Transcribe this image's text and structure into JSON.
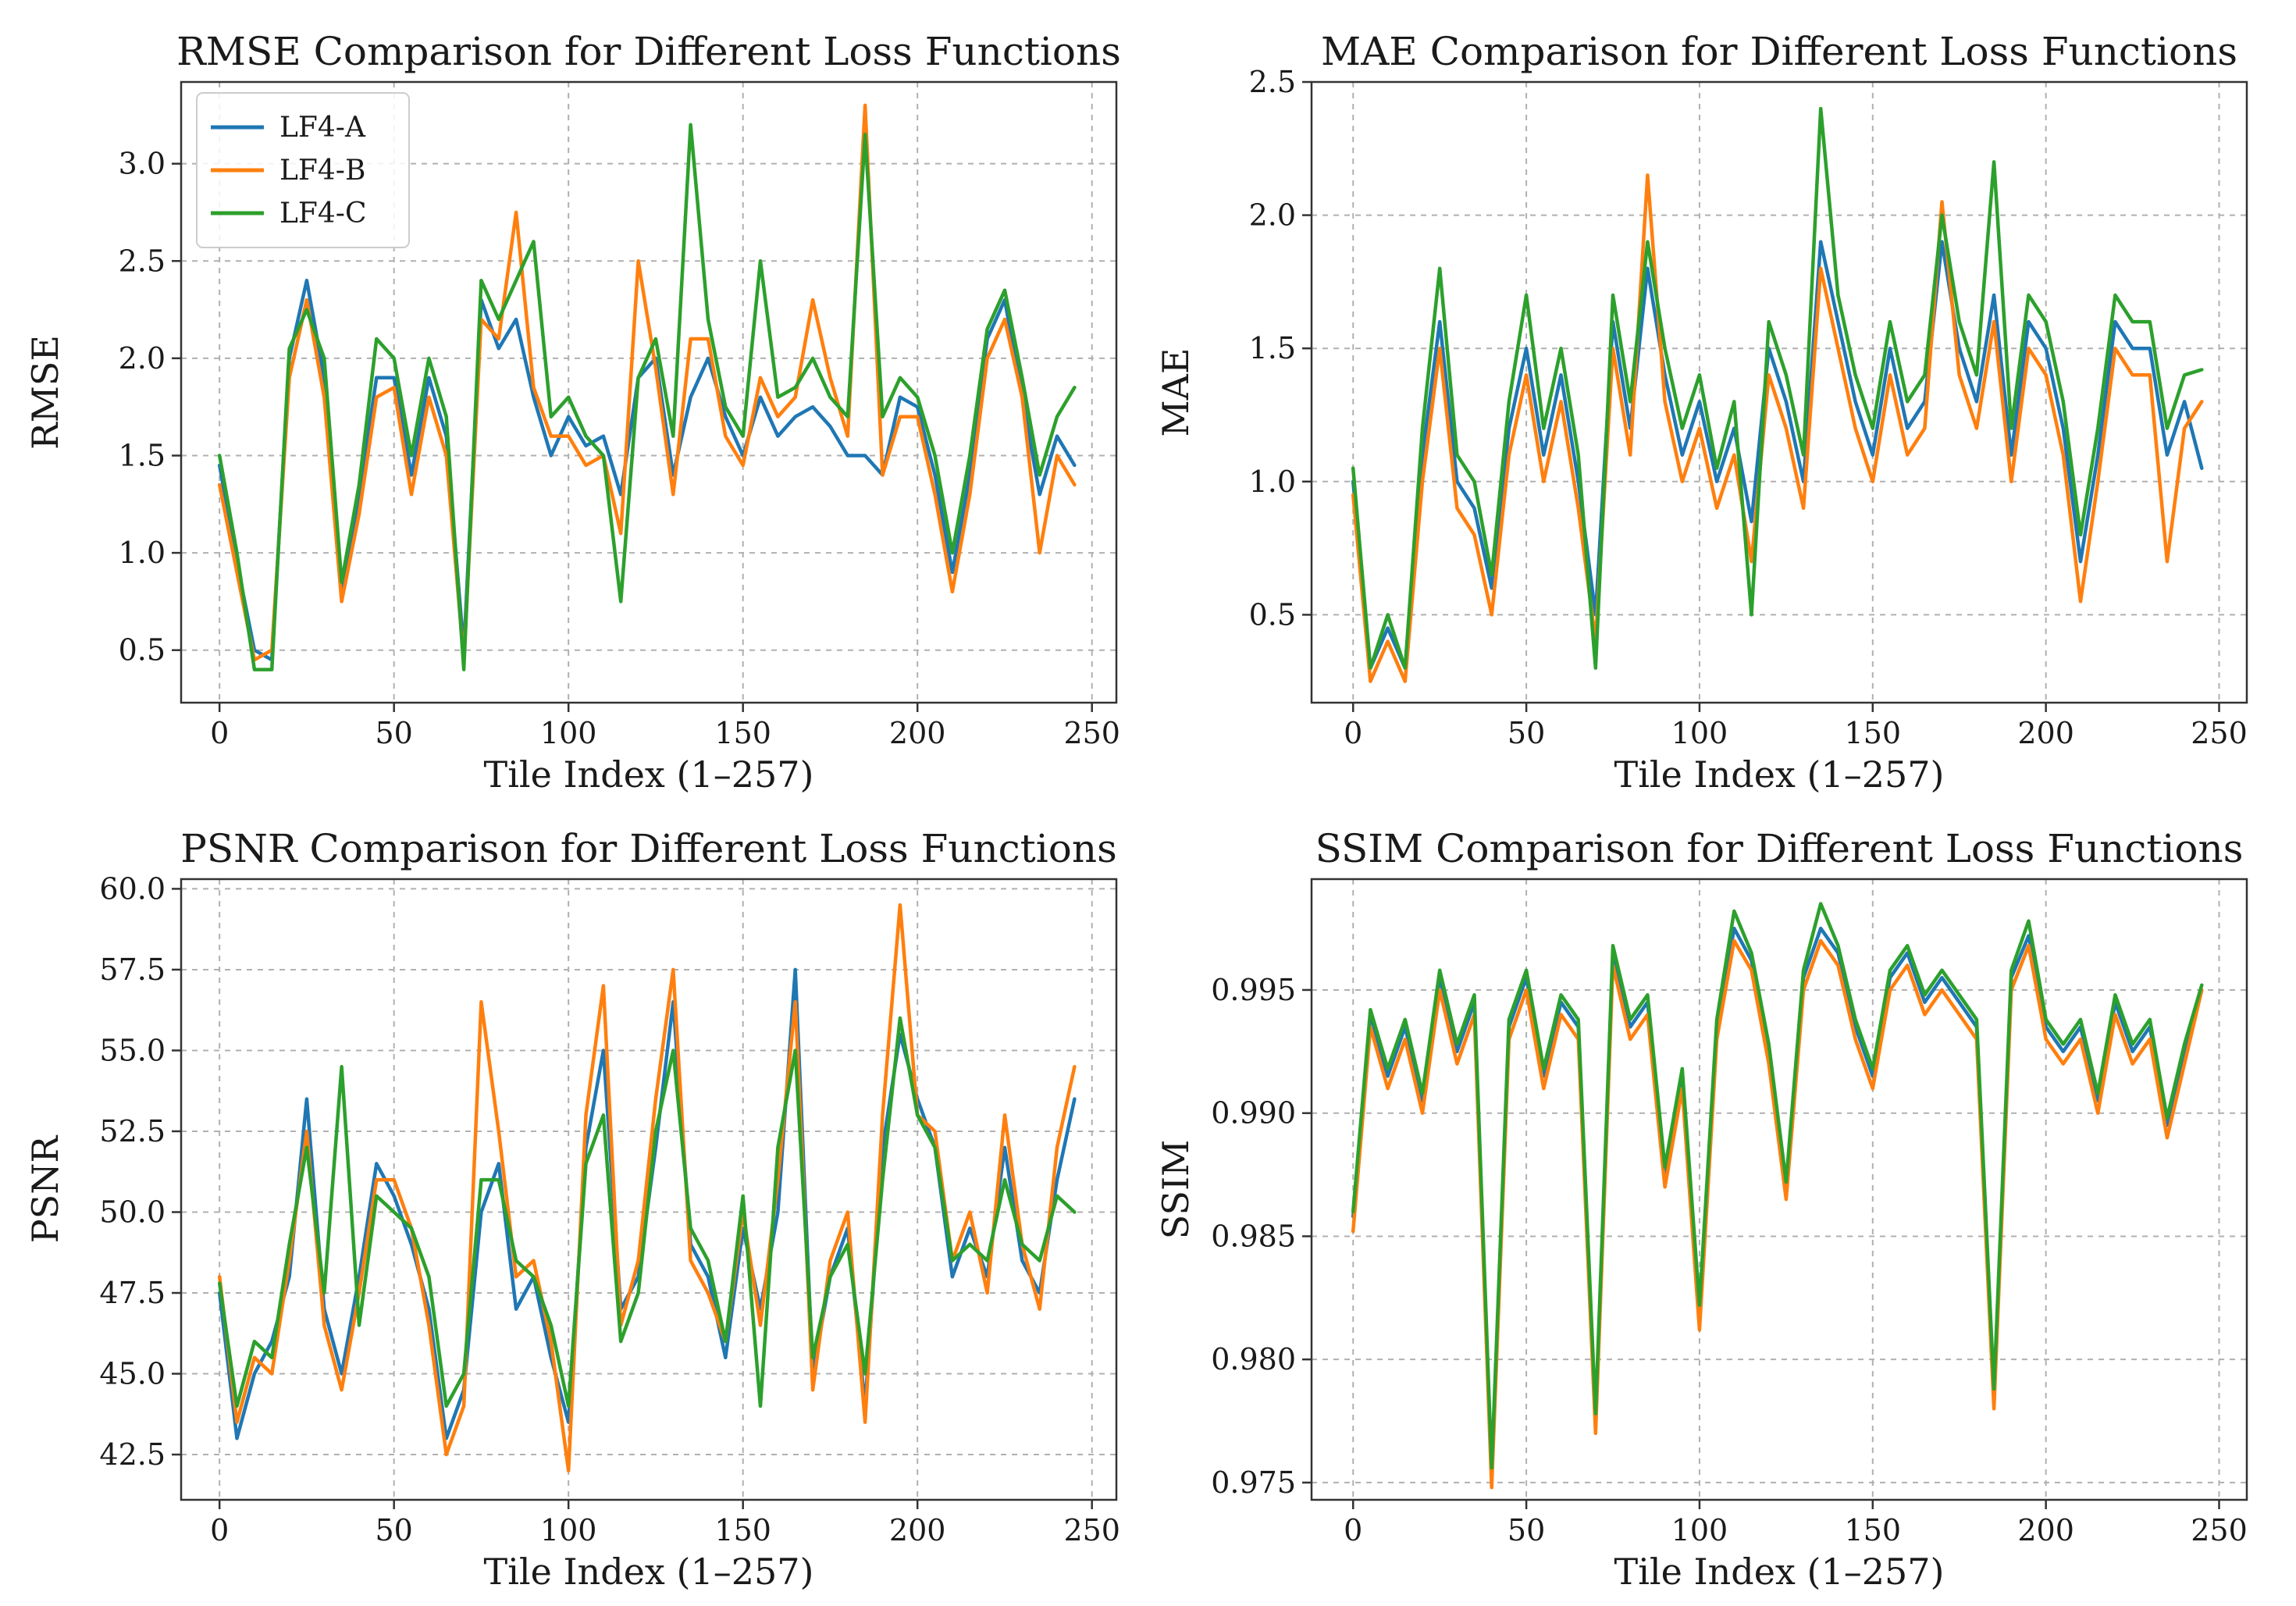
{
  "chart_data": [
    {
      "type": "line",
      "title": "RMSE Comparison for Different Loss Functions",
      "xlabel": "Tile Index (1–257)",
      "ylabel": "RMSE",
      "xlim": [
        -11,
        257
      ],
      "ylim": [
        0.23,
        3.42
      ],
      "xticks": [
        0,
        50,
        100,
        150,
        200,
        250
      ],
      "yticks": [
        0.5,
        1.0,
        1.5,
        2.0,
        2.5,
        3.0
      ],
      "ytick_decimals": 1,
      "grid": true,
      "legend": {
        "position": "top-left",
        "entries": [
          "LF4-A",
          "LF4-B",
          "LF4-C"
        ]
      },
      "series": [
        {
          "name": "LF4-A",
          "color": "#1f77b4"
        },
        {
          "name": "LF4-B",
          "color": "#ff7f0e"
        },
        {
          "name": "LF4-C",
          "color": "#2ca02c"
        }
      ],
      "x": [
        0,
        5,
        10,
        15,
        20,
        25,
        30,
        35,
        40,
        45,
        50,
        55,
        60,
        65,
        70,
        75,
        80,
        85,
        90,
        95,
        100,
        105,
        110,
        115,
        120,
        125,
        130,
        135,
        140,
        145,
        150,
        155,
        160,
        165,
        170,
        175,
        180,
        185,
        190,
        195,
        200,
        205,
        210,
        215,
        220,
        225,
        230,
        235,
        240,
        245
      ],
      "values": [
        [
          1.45,
          0.95,
          0.5,
          0.45,
          2.0,
          2.4,
          1.9,
          0.8,
          1.3,
          1.9,
          1.9,
          1.4,
          1.9,
          1.6,
          0.5,
          2.3,
          2.05,
          2.2,
          1.8,
          1.5,
          1.7,
          1.55,
          1.6,
          1.3,
          1.9,
          2.0,
          1.4,
          1.8,
          2.0,
          1.7,
          1.5,
          1.8,
          1.6,
          1.7,
          1.75,
          1.65,
          1.5,
          1.5,
          1.4,
          1.8,
          1.75,
          1.4,
          0.9,
          1.4,
          2.1,
          2.3,
          1.8,
          1.3,
          1.6,
          1.45
        ],
        [
          1.35,
          0.9,
          0.45,
          0.5,
          1.9,
          2.3,
          1.8,
          0.75,
          1.2,
          1.8,
          1.85,
          1.3,
          1.8,
          1.5,
          0.45,
          2.2,
          2.1,
          2.75,
          1.85,
          1.6,
          1.6,
          1.45,
          1.5,
          1.1,
          2.5,
          1.95,
          1.3,
          2.1,
          2.1,
          1.6,
          1.45,
          1.9,
          1.7,
          1.8,
          2.3,
          1.9,
          1.6,
          3.3,
          1.4,
          1.7,
          1.7,
          1.3,
          0.8,
          1.3,
          2.0,
          2.2,
          1.8,
          1.0,
          1.5,
          1.35
        ],
        [
          1.5,
          1.0,
          0.4,
          0.4,
          2.05,
          2.25,
          2.0,
          0.85,
          1.35,
          2.1,
          2.0,
          1.5,
          2.0,
          1.7,
          0.4,
          2.4,
          2.2,
          2.4,
          2.6,
          1.7,
          1.8,
          1.6,
          1.5,
          0.75,
          1.9,
          2.1,
          1.6,
          3.2,
          2.2,
          1.75,
          1.6,
          2.5,
          1.8,
          1.85,
          2.0,
          1.8,
          1.7,
          3.15,
          1.7,
          1.9,
          1.8,
          1.5,
          1.0,
          1.5,
          2.15,
          2.35,
          1.9,
          1.4,
          1.7,
          1.85
        ]
      ]
    },
    {
      "type": "line",
      "title": "MAE Comparison for Different Loss Functions",
      "xlabel": "Tile Index (1–257)",
      "ylabel": "MAE",
      "xlim": [
        -12,
        258
      ],
      "ylim": [
        0.17,
        2.5
      ],
      "xticks": [
        0,
        50,
        100,
        150,
        200,
        250
      ],
      "yticks": [
        0.5,
        1.0,
        1.5,
        2.0,
        2.5
      ],
      "ytick_decimals": 1,
      "grid": true,
      "series": [
        {
          "name": "LF4-A",
          "color": "#1f77b4"
        },
        {
          "name": "LF4-B",
          "color": "#ff7f0e"
        },
        {
          "name": "LF4-C",
          "color": "#2ca02c"
        }
      ],
      "x": [
        0,
        5,
        10,
        15,
        20,
        25,
        30,
        35,
        40,
        45,
        50,
        55,
        60,
        65,
        70,
        75,
        80,
        85,
        90,
        95,
        100,
        105,
        110,
        115,
        120,
        125,
        130,
        135,
        140,
        145,
        150,
        155,
        160,
        165,
        170,
        175,
        180,
        185,
        190,
        195,
        200,
        205,
        210,
        215,
        220,
        225,
        230,
        235,
        240,
        245
      ],
      "values": [
        [
          1.0,
          0.3,
          0.45,
          0.3,
          1.1,
          1.6,
          1.0,
          0.9,
          0.6,
          1.2,
          1.5,
          1.1,
          1.4,
          1.0,
          0.5,
          1.6,
          1.2,
          1.8,
          1.4,
          1.1,
          1.3,
          1.0,
          1.2,
          0.85,
          1.5,
          1.3,
          1.0,
          1.9,
          1.6,
          1.3,
          1.1,
          1.5,
          1.2,
          1.3,
          1.9,
          1.5,
          1.3,
          1.7,
          1.1,
          1.6,
          1.5,
          1.2,
          0.7,
          1.1,
          1.6,
          1.5,
          1.5,
          1.1,
          1.3,
          1.05
        ],
        [
          0.95,
          0.25,
          0.4,
          0.25,
          1.0,
          1.5,
          0.9,
          0.8,
          0.5,
          1.1,
          1.4,
          1.0,
          1.3,
          0.9,
          0.4,
          1.5,
          1.1,
          2.15,
          1.3,
          1.0,
          1.2,
          0.9,
          1.1,
          0.7,
          1.4,
          1.2,
          0.9,
          1.8,
          1.5,
          1.2,
          1.0,
          1.4,
          1.1,
          1.2,
          2.05,
          1.4,
          1.2,
          1.6,
          1.0,
          1.5,
          1.4,
          1.1,
          0.55,
          1.0,
          1.5,
          1.4,
          1.4,
          0.7,
          1.2,
          1.3
        ],
        [
          1.05,
          0.3,
          0.5,
          0.3,
          1.2,
          1.8,
          1.1,
          1.0,
          0.65,
          1.3,
          1.7,
          1.2,
          1.5,
          1.1,
          0.3,
          1.7,
          1.3,
          1.9,
          1.5,
          1.2,
          1.4,
          1.05,
          1.3,
          0.5,
          1.6,
          1.4,
          1.1,
          2.4,
          1.7,
          1.4,
          1.2,
          1.6,
          1.3,
          1.4,
          2.0,
          1.6,
          1.4,
          2.2,
          1.2,
          1.7,
          1.6,
          1.3,
          0.8,
          1.2,
          1.7,
          1.6,
          1.6,
          1.2,
          1.4,
          1.42
        ]
      ]
    },
    {
      "type": "line",
      "title": "PSNR Comparison for Different Loss Functions",
      "xlabel": "Tile Index (1–257)",
      "ylabel": "PSNR",
      "xlim": [
        -11,
        257
      ],
      "ylim": [
        41.1,
        60.3
      ],
      "xticks": [
        0,
        50,
        100,
        150,
        200,
        250
      ],
      "yticks": [
        42.5,
        45.0,
        47.5,
        50.0,
        52.5,
        55.0,
        57.5,
        60.0
      ],
      "ytick_decimals": 1,
      "grid": true,
      "series": [
        {
          "name": "LF4-A",
          "color": "#1f77b4"
        },
        {
          "name": "LF4-B",
          "color": "#ff7f0e"
        },
        {
          "name": "LF4-C",
          "color": "#2ca02c"
        }
      ],
      "x": [
        0,
        5,
        10,
        15,
        20,
        25,
        30,
        35,
        40,
        45,
        50,
        55,
        60,
        65,
        70,
        75,
        80,
        85,
        90,
        95,
        100,
        105,
        110,
        115,
        120,
        125,
        130,
        135,
        140,
        145,
        150,
        155,
        160,
        165,
        170,
        175,
        180,
        185,
        190,
        195,
        200,
        205,
        210,
        215,
        220,
        225,
        230,
        235,
        240,
        245
      ],
      "values": [
        [
          47.5,
          43.0,
          45.0,
          46.0,
          48.0,
          53.5,
          47.0,
          45.0,
          48.0,
          51.5,
          50.5,
          49.0,
          47.0,
          43.0,
          44.5,
          50.0,
          51.5,
          47.0,
          48.0,
          45.5,
          43.5,
          52.0,
          55.0,
          47.0,
          48.0,
          52.0,
          56.5,
          49.0,
          48.0,
          45.5,
          49.5,
          47.0,
          50.0,
          57.5,
          45.0,
          48.0,
          49.5,
          44.0,
          52.0,
          55.5,
          53.5,
          52.0,
          48.0,
          49.5,
          48.0,
          52.0,
          48.5,
          47.5,
          51.0,
          53.5
        ],
        [
          48.0,
          43.5,
          45.5,
          45.0,
          48.5,
          52.5,
          46.5,
          44.5,
          47.5,
          51.0,
          51.0,
          49.5,
          46.5,
          42.5,
          44.0,
          56.5,
          52.5,
          48.0,
          48.5,
          46.0,
          42.0,
          53.0,
          57.0,
          46.5,
          48.5,
          53.5,
          57.5,
          48.5,
          47.5,
          46.0,
          50.0,
          46.5,
          51.0,
          56.5,
          44.5,
          48.5,
          50.0,
          43.5,
          53.0,
          59.5,
          53.0,
          52.5,
          48.5,
          50.0,
          47.5,
          53.0,
          49.0,
          47.0,
          52.0,
          54.5
        ],
        [
          47.8,
          44.0,
          46.0,
          45.5,
          49.0,
          52.0,
          47.5,
          54.5,
          46.5,
          50.5,
          50.0,
          49.5,
          48.0,
          44.0,
          45.0,
          51.0,
          51.0,
          48.5,
          48.0,
          46.5,
          44.0,
          51.5,
          53.0,
          46.0,
          47.5,
          52.5,
          55.0,
          49.5,
          48.5,
          46.0,
          50.5,
          44.0,
          52.0,
          55.0,
          45.5,
          48.0,
          49.0,
          45.0,
          51.0,
          56.0,
          53.0,
          52.0,
          48.5,
          49.0,
          48.5,
          51.0,
          49.0,
          48.5,
          50.5,
          50.0
        ]
      ]
    },
    {
      "type": "line",
      "title": "SSIM Comparison for Different Loss Functions",
      "xlabel": "Tile Index (1–257)",
      "ylabel": "SSIM",
      "xlim": [
        -12,
        258
      ],
      "ylim": [
        0.9743,
        0.9995
      ],
      "xticks": [
        0,
        50,
        100,
        150,
        200,
        250
      ],
      "yticks": [
        0.975,
        0.98,
        0.985,
        0.99,
        0.995
      ],
      "ytick_decimals": 3,
      "grid": true,
      "series": [
        {
          "name": "LF4-A",
          "color": "#1f77b4"
        },
        {
          "name": "LF4-B",
          "color": "#ff7f0e"
        },
        {
          "name": "LF4-C",
          "color": "#2ca02c"
        }
      ],
      "x": [
        0,
        5,
        10,
        15,
        20,
        25,
        30,
        35,
        40,
        45,
        50,
        55,
        60,
        65,
        70,
        75,
        80,
        85,
        90,
        95,
        100,
        105,
        110,
        115,
        120,
        125,
        130,
        135,
        140,
        145,
        150,
        155,
        160,
        165,
        170,
        175,
        180,
        185,
        190,
        195,
        200,
        205,
        210,
        215,
        220,
        225,
        230,
        235,
        240,
        245
      ],
      "values": [
        [
          0.9858,
          0.994,
          0.9915,
          0.9935,
          0.9905,
          0.9955,
          0.9925,
          0.9945,
          0.9752,
          0.9935,
          0.9955,
          0.9915,
          0.9945,
          0.9935,
          0.9775,
          0.9965,
          0.9935,
          0.9945,
          0.9875,
          0.9915,
          0.9818,
          0.9935,
          0.9975,
          0.9962,
          0.9925,
          0.9868,
          0.9955,
          0.9975,
          0.9965,
          0.9935,
          0.9915,
          0.9955,
          0.9965,
          0.9945,
          0.9955,
          0.9945,
          0.9935,
          0.9785,
          0.9955,
          0.9972,
          0.9935,
          0.9925,
          0.9935,
          0.9905,
          0.9945,
          0.9925,
          0.9935,
          0.9895,
          0.9925,
          0.995
        ],
        [
          0.9852,
          0.9935,
          0.991,
          0.993,
          0.99,
          0.995,
          0.992,
          0.994,
          0.9748,
          0.993,
          0.995,
          0.991,
          0.994,
          0.993,
          0.977,
          0.996,
          0.993,
          0.994,
          0.987,
          0.991,
          0.9812,
          0.993,
          0.997,
          0.9958,
          0.992,
          0.9865,
          0.995,
          0.997,
          0.996,
          0.993,
          0.991,
          0.995,
          0.996,
          0.994,
          0.995,
          0.994,
          0.993,
          0.978,
          0.995,
          0.9968,
          0.993,
          0.992,
          0.993,
          0.99,
          0.994,
          0.992,
          0.993,
          0.989,
          0.992,
          0.995
        ],
        [
          0.986,
          0.9942,
          0.9918,
          0.9938,
          0.9908,
          0.9958,
          0.9928,
          0.9948,
          0.9756,
          0.9938,
          0.9958,
          0.9918,
          0.9948,
          0.9938,
          0.9778,
          0.9968,
          0.9938,
          0.9948,
          0.9878,
          0.9918,
          0.9822,
          0.9938,
          0.9982,
          0.9965,
          0.9928,
          0.9872,
          0.9958,
          0.9985,
          0.9968,
          0.9938,
          0.9918,
          0.9958,
          0.9968,
          0.9948,
          0.9958,
          0.9948,
          0.9938,
          0.9788,
          0.9958,
          0.9978,
          0.9938,
          0.9928,
          0.9938,
          0.9908,
          0.9948,
          0.9928,
          0.9938,
          0.9898,
          0.9928,
          0.9952
        ]
      ]
    }
  ]
}
